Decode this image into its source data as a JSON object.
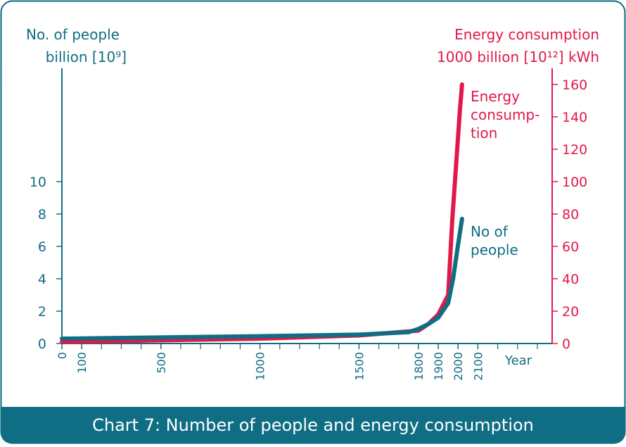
{
  "chart_data": {
    "type": "line",
    "y_label": [
      "No. of people",
      "billion [10⁹]"
    ],
    "y2_label": [
      "Energy consumption",
      "1000 billion [10¹²] kWh"
    ],
    "x_label": "Year",
    "caption": "Chart 7: Number of people and energy consumption",
    "xlim": [
      0,
      2475
    ],
    "xticks": [
      0,
      100,
      500,
      1000,
      1500,
      1800,
      1900,
      2000,
      2100
    ],
    "xminorticks": [
      200,
      300,
      400,
      600,
      700,
      800,
      900,
      1100,
      1200,
      1300,
      1400,
      1600,
      1700,
      2200,
      2300,
      2400
    ],
    "ylim": [
      0,
      17
    ],
    "yticks": [
      0,
      2,
      4,
      6,
      8,
      10
    ],
    "y2lim": [
      0,
      170
    ],
    "y2ticks": [
      0,
      20,
      40,
      60,
      80,
      100,
      120,
      140,
      160
    ],
    "series": [
      {
        "label_lines": [
          "Energy",
          "consump-",
          "tion"
        ],
        "color": "#e2184a",
        "axis": "y2",
        "x": [
          0,
          1000,
          1500,
          1800,
          1850,
          1900,
          1950,
          1970,
          1990,
          2010,
          2020
        ],
        "values": [
          1,
          3,
          5,
          8,
          12,
          18,
          30,
          75,
          110,
          145,
          160
        ]
      },
      {
        "label_lines": [
          "No of",
          "people"
        ],
        "color": "#0f6e83",
        "axis": "y",
        "x": [
          0,
          1000,
          1500,
          1750,
          1800,
          1850,
          1900,
          1950,
          1975,
          2000,
          2020
        ],
        "values": [
          0.3,
          0.45,
          0.55,
          0.7,
          0.9,
          1.2,
          1.6,
          2.5,
          4,
          6.1,
          7.7
        ]
      }
    ]
  }
}
